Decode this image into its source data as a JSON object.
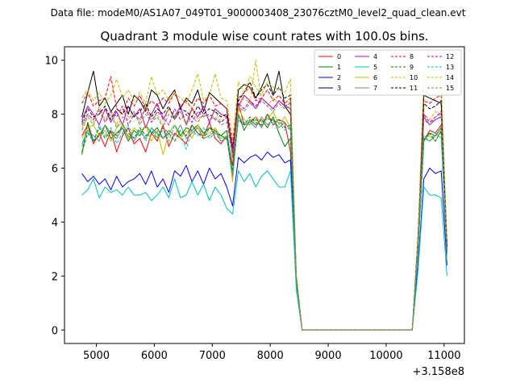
{
  "chart_data": {
    "type": "line",
    "suptitle": "Data file: modeM0/AS1A07_049T01_9000003408_23076cztM0_level2_quad_clean.evt",
    "title": "Quadrant 3 module wise count rates with 100.0s bins.",
    "xlabel": "",
    "ylabel": "",
    "offset_text": "+3.158e8",
    "xlim": [
      4450,
      11350
    ],
    "ylim": [
      -0.5,
      10.5
    ],
    "xticks": [
      5000,
      6000,
      7000,
      8000,
      9000,
      10000,
      11000
    ],
    "xtick_labels": [
      "5000",
      "6000",
      "7000",
      "8000",
      "9000",
      "10000",
      "11000"
    ],
    "yticks": [
      0,
      2,
      4,
      6,
      8,
      10
    ],
    "ytick_labels": [
      "0",
      "2",
      "4",
      "6",
      "8",
      "10"
    ],
    "grid": false,
    "legend_position": "top-right",
    "x": [
      4750,
      4850,
      4950,
      5050,
      5150,
      5250,
      5350,
      5450,
      5550,
      5650,
      5750,
      5850,
      5950,
      6050,
      6150,
      6250,
      6350,
      6450,
      6550,
      6650,
      6750,
      6850,
      6950,
      7050,
      7150,
      7250,
      7350,
      7450,
      7550,
      7650,
      7750,
      7850,
      7950,
      8050,
      8150,
      8250,
      8350,
      8450,
      8550,
      8650,
      8750,
      8850,
      8950,
      9050,
      9150,
      9250,
      9350,
      9450,
      9550,
      9650,
      9750,
      9850,
      9950,
      10050,
      10150,
      10250,
      10350,
      10450,
      10550,
      10650,
      10750,
      10850,
      10950,
      11050
    ],
    "series": [
      {
        "name": "0",
        "color": "#ff0000",
        "dash": "solid",
        "values": [
          7.2,
          7.6,
          6.9,
          7.3,
          6.8,
          7.4,
          6.6,
          7.2,
          7.5,
          6.9,
          7.1,
          6.6,
          7.3,
          7.0,
          7.6,
          6.8,
          7.3,
          7.1,
          6.9,
          7.6,
          7.3,
          7.2,
          7.7,
          7.1,
          6.9,
          7.2,
          6.1,
          8.4,
          7.6,
          7.7,
          7.9,
          7.5,
          8.0,
          7.6,
          7.8,
          7.7,
          6.6,
          1.9,
          0,
          0,
          0,
          0,
          0,
          0,
          0,
          0,
          0,
          0,
          0,
          0,
          0,
          0,
          0,
          0,
          0,
          0,
          0,
          0,
          3.0,
          7.0,
          7.4,
          7.3,
          7.6,
          3.1
        ]
      },
      {
        "name": "1",
        "color": "#008000",
        "dash": "solid",
        "values": [
          6.5,
          7.7,
          7.0,
          7.2,
          7.6,
          7.1,
          7.3,
          7.5,
          7.0,
          7.4,
          7.2,
          7.6,
          7.3,
          7.5,
          7.1,
          7.3,
          7.6,
          7.2,
          7.5,
          7.4,
          7.6,
          7.3,
          7.5,
          7.4,
          7.2,
          7.4,
          5.8,
          8.0,
          7.4,
          7.8,
          7.6,
          7.8,
          7.5,
          7.9,
          7.3,
          6.8,
          7.1,
          1.8,
          0,
          0,
          0,
          0,
          0,
          0,
          0,
          0,
          0,
          0,
          0,
          0,
          0,
          0,
          0,
          0,
          0,
          0,
          0,
          0,
          3.1,
          7.0,
          7.3,
          7.2,
          7.5,
          2.8
        ]
      },
      {
        "name": "2",
        "color": "#0000ff",
        "dash": "solid",
        "values": [
          5.8,
          5.5,
          5.7,
          5.4,
          5.6,
          5.2,
          5.7,
          5.3,
          5.5,
          5.6,
          5.8,
          5.4,
          5.9,
          5.3,
          5.6,
          5.1,
          5.9,
          5.7,
          6.1,
          5.5,
          5.9,
          5.4,
          6.0,
          5.6,
          5.8,
          5.3,
          4.6,
          6.4,
          6.2,
          6.4,
          6.5,
          6.3,
          6.6,
          6.4,
          6.5,
          6.2,
          6.3,
          1.7,
          0,
          0,
          0,
          0,
          0,
          0,
          0,
          0,
          0,
          0,
          0,
          0,
          0,
          0,
          0,
          0,
          0,
          0,
          0,
          0,
          2.4,
          5.6,
          6.0,
          5.8,
          5.9,
          2.4
        ]
      },
      {
        "name": "3",
        "color": "#000000",
        "dash": "solid",
        "values": [
          7.9,
          8.8,
          9.6,
          8.3,
          8.6,
          8.1,
          8.4,
          8.7,
          8.0,
          8.7,
          8.5,
          8.1,
          8.9,
          8.7,
          8.2,
          8.6,
          8.9,
          8.2,
          8.6,
          8.4,
          8.9,
          8.1,
          8.8,
          8.6,
          8.4,
          8.2,
          6.4,
          8.9,
          9.1,
          9.0,
          8.6,
          9.0,
          9.5,
          8.7,
          9.6,
          8.3,
          8.0,
          2.0,
          0,
          0,
          0,
          0,
          0,
          0,
          0,
          0,
          0,
          0,
          0,
          0,
          0,
          0,
          0,
          0,
          0,
          0,
          0,
          0,
          3.5,
          8.7,
          8.6,
          8.5,
          8.4,
          3.2
        ]
      },
      {
        "name": "4",
        "color": "#c000c0",
        "dash": "solid",
        "values": [
          7.8,
          8.3,
          8.0,
          7.6,
          8.2,
          7.7,
          8.1,
          7.6,
          8.3,
          7.9,
          8.2,
          7.5,
          8.0,
          8.4,
          7.8,
          8.2,
          7.9,
          8.3,
          7.6,
          8.2,
          7.9,
          8.3,
          7.7,
          8.2,
          8.0,
          7.9,
          6.8,
          8.3,
          8.7,
          8.5,
          8.2,
          8.6,
          8.4,
          8.2,
          8.5,
          8.3,
          8.2,
          1.9,
          0,
          0,
          0,
          0,
          0,
          0,
          0,
          0,
          0,
          0,
          0,
          0,
          0,
          0,
          0,
          0,
          0,
          0,
          0,
          0,
          3.3,
          7.9,
          7.6,
          7.8,
          7.9,
          3.0
        ]
      },
      {
        "name": "5",
        "color": "#00bfbf",
        "dash": "solid",
        "values": [
          5.0,
          5.2,
          5.6,
          4.9,
          5.3,
          5.1,
          5.2,
          5.0,
          5.3,
          5.0,
          5.0,
          5.1,
          4.8,
          5.0,
          5.3,
          4.9,
          5.6,
          4.9,
          5.0,
          5.5,
          5.0,
          5.4,
          4.8,
          5.3,
          5.0,
          4.5,
          4.3,
          5.9,
          5.5,
          5.8,
          5.3,
          5.7,
          5.9,
          5.6,
          5.3,
          5.3,
          5.9,
          1.5,
          0,
          0,
          0,
          0,
          0,
          0,
          0,
          0,
          0,
          0,
          0,
          0,
          0,
          0,
          0,
          0,
          0,
          0,
          0,
          0,
          2.2,
          5.3,
          5.0,
          5.0,
          4.9,
          2.0
        ]
      },
      {
        "name": "6",
        "color": "#bfbf00",
        "dash": "solid",
        "values": [
          7.1,
          7.5,
          7.6,
          7.2,
          7.4,
          7.0,
          7.5,
          7.7,
          7.1,
          7.5,
          7.3,
          7.6,
          7.0,
          7.4,
          6.5,
          7.3,
          7.6,
          7.1,
          7.4,
          7.1,
          7.6,
          7.2,
          7.3,
          7.5,
          7.1,
          7.2,
          5.5,
          8.2,
          7.8,
          7.6,
          7.9,
          7.7,
          7.8,
          8.1,
          7.6,
          7.9,
          7.5,
          1.8,
          0,
          0,
          0,
          0,
          0,
          0,
          0,
          0,
          0,
          0,
          0,
          0,
          0,
          0,
          0,
          0,
          0,
          0,
          0,
          0,
          3.0,
          7.1,
          7.2,
          7.0,
          7.4,
          2.6
        ]
      },
      {
        "name": "7",
        "color": "#808080",
        "dash": "solid",
        "values": [
          6.9,
          7.4,
          7.2,
          7.0,
          7.6,
          7.3,
          7.1,
          7.5,
          7.2,
          7.0,
          7.4,
          7.1,
          7.5,
          7.3,
          7.1,
          7.4,
          7.2,
          7.6,
          7.1,
          7.3,
          7.5,
          7.1,
          7.2,
          7.4,
          7.0,
          7.1,
          5.7,
          7.9,
          7.6,
          7.7,
          7.5,
          7.9,
          7.6,
          7.8,
          7.5,
          7.7,
          7.4,
          1.8,
          0,
          0,
          0,
          0,
          0,
          0,
          0,
          0,
          0,
          0,
          0,
          0,
          0,
          0,
          0,
          0,
          0,
          0,
          0,
          0,
          3.0,
          7.1,
          7.0,
          7.2,
          7.3,
          2.9
        ]
      },
      {
        "name": "8",
        "color": "#ff0000",
        "dash": "dashed",
        "values": [
          8.4,
          8.8,
          8.3,
          8.5,
          8.6,
          9.4,
          8.2,
          8.0,
          8.6,
          8.3,
          8.7,
          8.2,
          8.5,
          8.3,
          8.6,
          8.4,
          8.8,
          8.3,
          8.5,
          8.2,
          8.6,
          8.4,
          8.7,
          8.3,
          8.4,
          8.2,
          6.9,
          8.6,
          8.8,
          9.0,
          8.5,
          8.6,
          8.9,
          8.5,
          8.7,
          8.4,
          8.6,
          2.0,
          0,
          0,
          0,
          0,
          0,
          0,
          0,
          0,
          0,
          0,
          0,
          0,
          0,
          0,
          0,
          0,
          0,
          0,
          0,
          0,
          3.4,
          8.5,
          8.4,
          8.6,
          8.7,
          3.2
        ]
      },
      {
        "name": "9",
        "color": "#008000",
        "dash": "dashed",
        "values": [
          6.6,
          7.3,
          7.0,
          7.5,
          7.1,
          7.4,
          7.2,
          7.6,
          7.3,
          7.1,
          7.5,
          7.2,
          7.4,
          7.1,
          7.5,
          7.3,
          7.0,
          7.4,
          7.2,
          7.6,
          7.3,
          7.1,
          7.5,
          7.3,
          7.2,
          7.1,
          5.9,
          7.8,
          7.6,
          7.9,
          7.7,
          7.6,
          8.0,
          7.7,
          7.8,
          7.5,
          7.6,
          1.8,
          0,
          0,
          0,
          0,
          0,
          0,
          0,
          0,
          0,
          0,
          0,
          0,
          0,
          0,
          0,
          0,
          0,
          0,
          0,
          0,
          3.0,
          7.1,
          7.3,
          7.0,
          7.4,
          2.9
        ]
      },
      {
        "name": "10",
        "color": "#bfbf00",
        "dash": "dashed",
        "values": [
          7.5,
          8.0,
          7.7,
          8.3,
          7.8,
          8.1,
          7.6,
          8.2,
          7.9,
          8.1,
          7.7,
          8.3,
          7.8,
          8.0,
          7.6,
          8.2,
          7.9,
          8.1,
          7.7,
          8.3,
          7.8,
          8.0,
          7.9,
          8.1,
          7.7,
          7.9,
          6.5,
          8.3,
          8.6,
          8.4,
          10.0,
          8.5,
          8.3,
          8.6,
          8.4,
          8.2,
          8.5,
          1.9,
          0,
          0,
          0,
          0,
          0,
          0,
          0,
          0,
          0,
          0,
          0,
          0,
          0,
          0,
          0,
          0,
          0,
          0,
          0,
          0,
          3.3,
          8.0,
          7.8,
          8.1,
          8.0,
          3.0
        ]
      },
      {
        "name": "11",
        "color": "#000000",
        "dash": "dashed",
        "values": [
          7.7,
          8.2,
          7.9,
          8.0,
          8.3,
          7.8,
          8.2,
          8.0,
          8.3,
          7.9,
          8.1,
          8.4,
          7.9,
          8.2,
          8.0,
          8.3,
          7.8,
          8.2,
          8.1,
          7.9,
          8.3,
          8.0,
          8.2,
          8.1,
          7.9,
          8.0,
          6.7,
          8.5,
          8.8,
          9.2,
          8.6,
          8.9,
          9.1,
          8.7,
          9.0,
          8.6,
          8.7,
          2.0,
          0,
          0,
          0,
          0,
          0,
          0,
          0,
          0,
          0,
          0,
          0,
          0,
          0,
          0,
          0,
          0,
          0,
          0,
          0,
          0,
          3.4,
          8.4,
          8.2,
          8.3,
          8.5,
          3.1
        ]
      },
      {
        "name": "12",
        "color": "#c000c0",
        "dash": "dashed",
        "values": [
          7.6,
          8.0,
          7.8,
          8.2,
          7.7,
          8.1,
          7.9,
          8.3,
          7.6,
          8.0,
          7.8,
          8.2,
          7.7,
          8.1,
          7.9,
          7.6,
          8.2,
          7.8,
          8.0,
          7.7,
          8.1,
          7.9,
          8.0,
          7.8,
          7.7,
          7.9,
          6.6,
          8.4,
          8.2,
          8.5,
          8.3,
          8.6,
          8.4,
          8.2,
          8.5,
          8.3,
          8.4,
          1.9,
          0,
          0,
          0,
          0,
          0,
          0,
          0,
          0,
          0,
          0,
          0,
          0,
          0,
          0,
          0,
          0,
          0,
          0,
          0,
          0,
          3.2,
          8.0,
          7.7,
          7.9,
          8.1,
          3.0
        ]
      },
      {
        "name": "13",
        "color": "#00bfbf",
        "dash": "dashed",
        "values": [
          6.8,
          7.4,
          7.0,
          7.6,
          7.2,
          7.5,
          6.9,
          7.3,
          7.6,
          7.1,
          7.4,
          7.0,
          7.5,
          7.2,
          7.4,
          7.0,
          7.6,
          7.3,
          6.7,
          7.4,
          7.2,
          7.5,
          7.1,
          7.3,
          7.0,
          7.2,
          5.8,
          7.9,
          7.7,
          7.6,
          7.8,
          7.5,
          7.9,
          7.6,
          7.7,
          7.4,
          7.5,
          1.7,
          0,
          0,
          0,
          0,
          0,
          0,
          0,
          0,
          0,
          0,
          0,
          0,
          0,
          0,
          0,
          0,
          0,
          0,
          0,
          0,
          3.0,
          7.2,
          7.0,
          7.3,
          7.1,
          2.8
        ]
      },
      {
        "name": "14",
        "color": "#bfbf00",
        "dash": "dashed",
        "values": [
          8.6,
          8.9,
          8.5,
          8.8,
          8.4,
          8.7,
          9.3,
          8.6,
          8.9,
          8.5,
          8.8,
          8.4,
          9.4,
          8.7,
          8.9,
          8.5,
          8.8,
          8.6,
          8.4,
          8.9,
          9.5,
          8.5,
          8.7,
          9.5,
          8.6,
          8.5,
          7.1,
          9.2,
          8.8,
          9.4,
          9.0,
          8.7,
          9.2,
          9.0,
          8.9,
          8.8,
          9.3,
          2.1,
          0,
          0,
          0,
          0,
          0,
          0,
          0,
          0,
          0,
          0,
          0,
          0,
          0,
          0,
          0,
          0,
          0,
          0,
          0,
          0,
          3.5,
          9.5,
          8.9,
          9.1,
          9.3,
          3.3
        ]
      },
      {
        "name": "15",
        "color": "#808080",
        "dash": "dashed",
        "values": [
          7.4,
          7.9,
          7.6,
          8.1,
          7.7,
          8.0,
          7.5,
          7.9,
          7.8,
          8.1,
          7.6,
          8.0,
          7.7,
          7.9,
          7.5,
          8.0,
          7.8,
          8.1,
          7.6,
          7.9,
          7.7,
          8.0,
          7.8,
          7.9,
          7.6,
          7.7,
          6.4,
          8.3,
          8.1,
          8.4,
          8.2,
          8.5,
          8.3,
          8.1,
          8.4,
          8.2,
          8.3,
          1.9,
          0,
          0,
          0,
          0,
          0,
          0,
          0,
          0,
          0,
          0,
          0,
          0,
          0,
          0,
          0,
          0,
          0,
          0,
          0,
          0,
          3.2,
          7.8,
          7.6,
          7.9,
          8.0,
          2.9
        ]
      }
    ]
  }
}
